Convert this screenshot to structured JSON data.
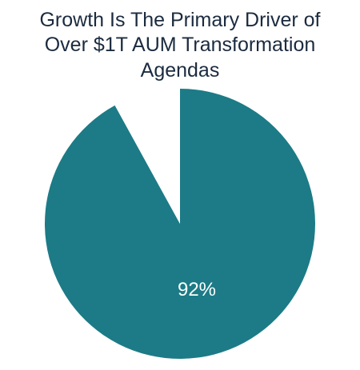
{
  "chart_data": {
    "type": "pie",
    "title_lines": [
      "Growth Is The Primary Driver of",
      "Over $1T AUM Transformation",
      "Agendas"
    ],
    "slices": [
      {
        "label": "92%",
        "value": 92,
        "color": "#1c7b86"
      },
      {
        "label": "",
        "value": 8,
        "color": "#ffffff"
      }
    ],
    "start_angle_deg": 0,
    "direction": "clockwise"
  }
}
